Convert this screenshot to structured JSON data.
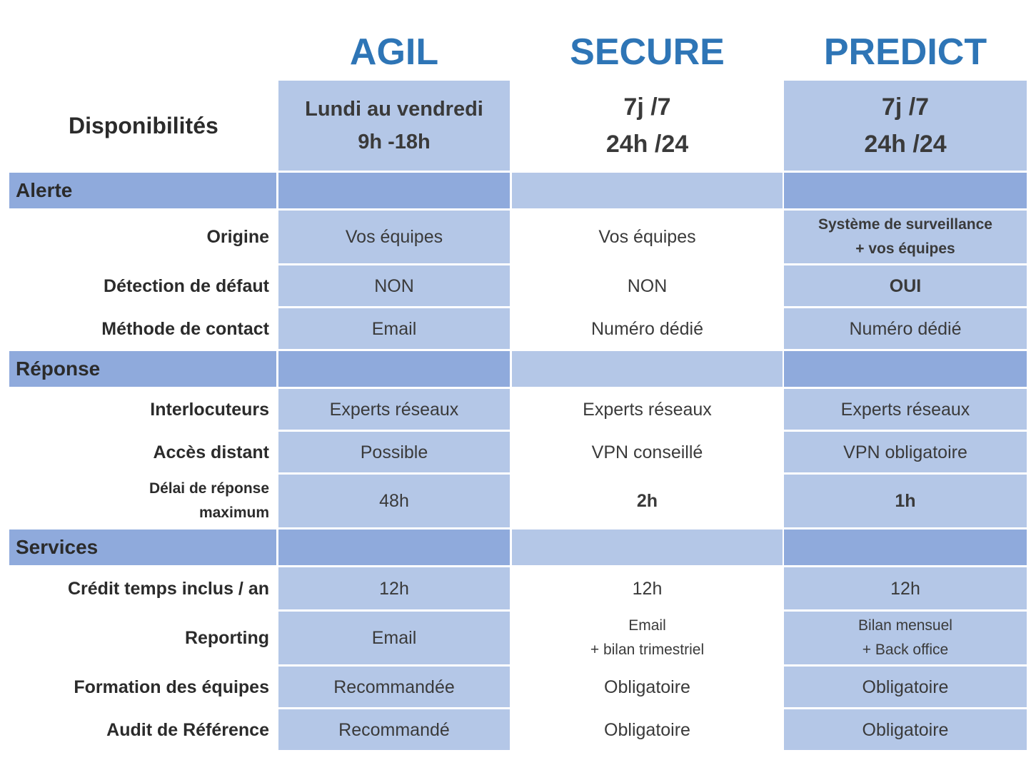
{
  "plans": [
    "AGIL",
    "SECURE",
    "PREDICT"
  ],
  "availability": {
    "label": "Disponibilités",
    "agil": [
      "Lundi au vendredi",
      "9h -18h"
    ],
    "secure": [
      "7j /7",
      "24h /24"
    ],
    "predict": [
      "7j /7",
      "24h /24"
    ]
  },
  "sections": {
    "alerte": "Alerte",
    "reponse": "Réponse",
    "services": "Services"
  },
  "rows": {
    "origine": {
      "label": "Origine",
      "agil": "Vos équipes",
      "secure": "Vos équipes",
      "predict": [
        "Système de surveillance",
        "+ vos équipes"
      ]
    },
    "detection": {
      "label": "Détection de défaut",
      "agil": "NON",
      "secure": "NON",
      "predict": "OUI"
    },
    "contact": {
      "label": "Méthode de contact",
      "agil": "Email",
      "secure": "Numéro dédié",
      "predict": "Numéro dédié"
    },
    "interlocuteurs": {
      "label": "Interlocuteurs",
      "agil": "Experts réseaux",
      "secure": "Experts réseaux",
      "predict": "Experts réseaux"
    },
    "acces": {
      "label": "Accès distant",
      "agil": "Possible",
      "secure": "VPN conseillé",
      "predict": "VPN obligatoire"
    },
    "delai": {
      "label": [
        "Délai de réponse",
        "maximum"
      ],
      "agil": "48h",
      "secure": "2h",
      "predict": "1h"
    },
    "credit": {
      "label": "Crédit temps inclus / an",
      "agil": "12h",
      "secure": "12h",
      "predict": "12h"
    },
    "reporting": {
      "label": "Reporting",
      "agil": "Email",
      "secure": [
        "Email",
        "+ bilan trimestriel"
      ],
      "predict": [
        "Bilan mensuel",
        "+ Back office"
      ]
    },
    "formation": {
      "label": "Formation des équipes",
      "agil": "Recommandée",
      "secure": "Obligatoire",
      "predict": "Obligatoire"
    },
    "audit": {
      "label": "Audit de Référence",
      "agil": "Recommandé",
      "secure": "Obligatoire",
      "predict": "Obligatoire"
    }
  },
  "colors": {
    "accent": "#2e75b6",
    "cell_light": "#b4c7e7",
    "cell_mid": "#8faadc"
  }
}
